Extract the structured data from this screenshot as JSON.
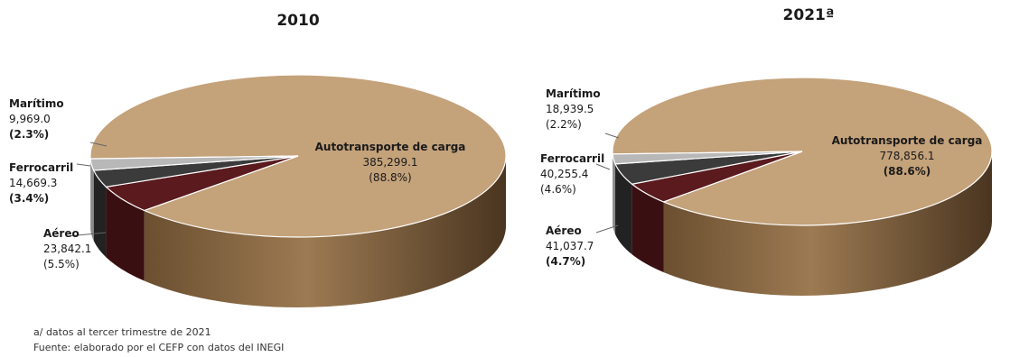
{
  "chart_data": [
    {
      "type": "pie",
      "title": "2010",
      "slices": [
        {
          "name": "Autotransporte de carga",
          "value_label": "385,299.1",
          "value": 385299.1,
          "percent": 88.8,
          "pct_label": "(88.8%)",
          "color": "#c4a27a",
          "side": "#8a6a44"
        },
        {
          "name": "Aéreo",
          "value_label": "23,842.1",
          "value": 23842.1,
          "percent": 5.5,
          "pct_label": "(5.5%)",
          "color": "#5a1a1e",
          "side": "#3a0f12"
        },
        {
          "name": "Ferrocarril",
          "value_label": "14,669.3",
          "value": 14669.3,
          "percent": 3.4,
          "pct_label": "(3.4%)",
          "color": "#3b3b3b",
          "side": "#222222"
        },
        {
          "name": "Marítimo",
          "value_label": "9,969.0",
          "value": 9969.0,
          "percent": 2.3,
          "pct_label": "(2.3%)",
          "color": "#b8b8b8",
          "side": "#8a8a8a"
        }
      ]
    },
    {
      "type": "pie",
      "title": "2021ª",
      "slices": [
        {
          "name": "Autotransporte de carga",
          "value_label": "778,856.1",
          "value": 778856.1,
          "percent": 88.6,
          "pct_label": "(88.6%)",
          "color": "#c4a27a",
          "side": "#8a6a44"
        },
        {
          "name": "Aéreo",
          "value_label": "41,037.7",
          "value": 41037.7,
          "percent": 4.7,
          "pct_label": "(4.7%)",
          "color": "#5a1a1e",
          "side": "#3a0f12"
        },
        {
          "name": "Ferrocarril",
          "value_label": "40,255.4",
          "value": 40255.4,
          "percent": 4.6,
          "pct_label": "(4.6%)",
          "color": "#3b3b3b",
          "side": "#222222"
        },
        {
          "name": "Marítimo",
          "value_label": "18,939.5",
          "value": 18939.5,
          "percent": 2.2,
          "pct_label": "(2.2%)",
          "color": "#b8b8b8",
          "side": "#8a8a8a"
        }
      ]
    }
  ],
  "notes": {
    "footnote": "a/ datos al tercer trimestre de 2021",
    "source": "Fuente: elaborado por el CEFP con datos del INEGI"
  }
}
